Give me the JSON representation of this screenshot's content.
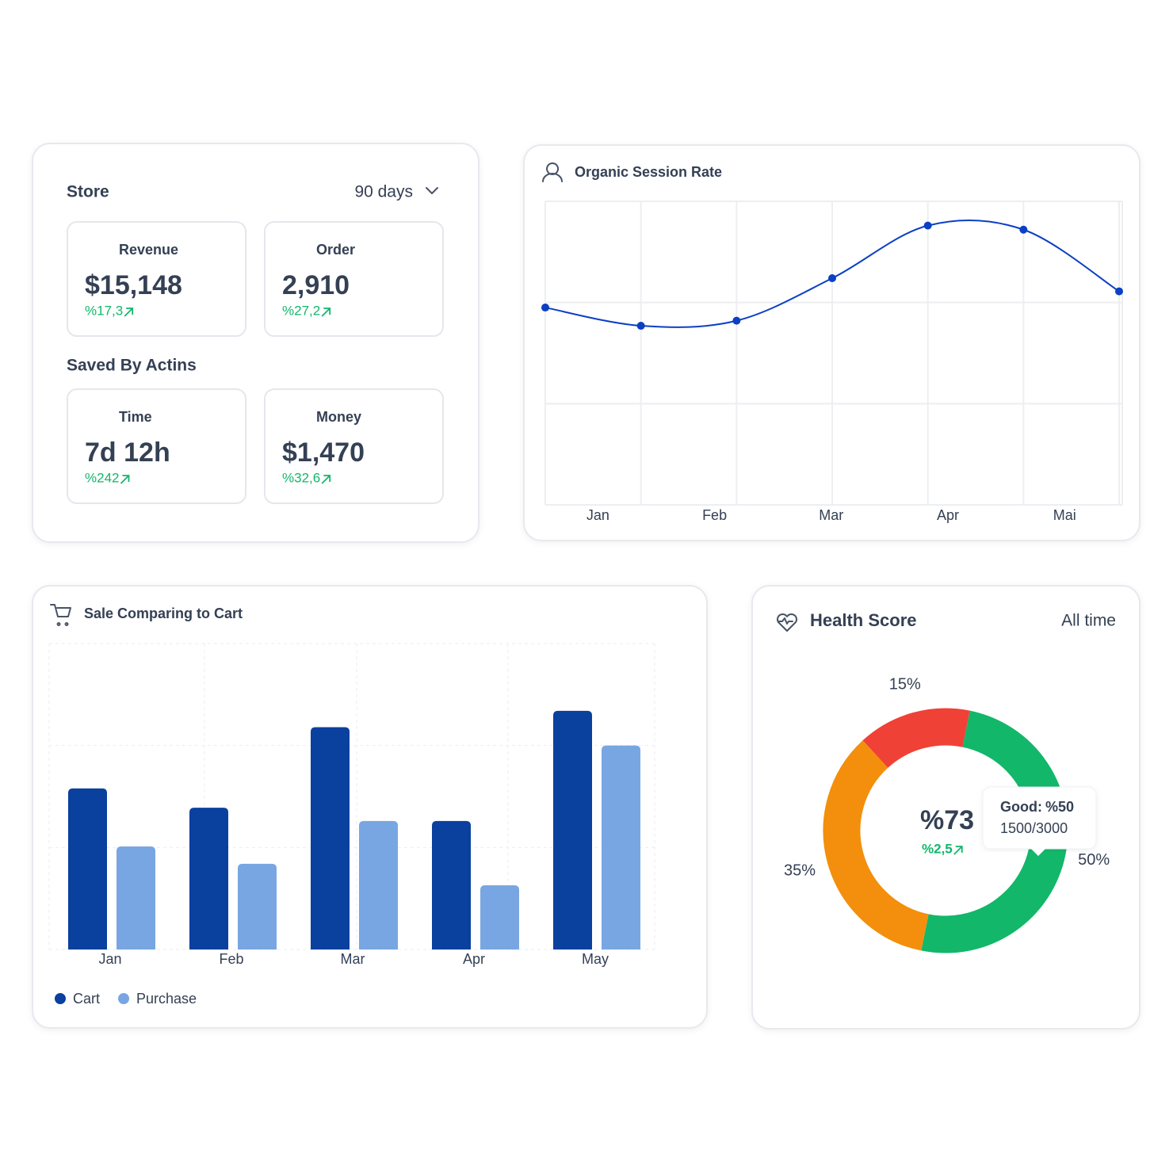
{
  "store": {
    "title": "Store",
    "period": "90 days",
    "metrics": [
      {
        "label": "Revenue",
        "value": "$15,148",
        "change": "%17,3"
      },
      {
        "label": "Order",
        "value": "2,910",
        "change": "%27,2"
      }
    ],
    "saved_title": "Saved By Actins",
    "saved": [
      {
        "label": "Time",
        "value": "7d 12h",
        "change": "%242"
      },
      {
        "label": "Money",
        "value": "$1,470",
        "change": "%32,6"
      }
    ]
  },
  "chart_data": [
    {
      "type": "line",
      "title": "Organic Session Rate",
      "x": [
        0,
        1,
        2,
        3,
        4,
        5,
        6
      ],
      "values": [
        1.95,
        1.77,
        1.82,
        2.24,
        2.76,
        2.72,
        2.11
      ],
      "color": "#0b3fc4",
      "xlim": [
        0,
        6
      ],
      "ylim": [
        0,
        3
      ],
      "yticks": [
        0,
        1,
        2,
        3
      ],
      "xticks": [
        {
          "value": 0.55,
          "label": "Jan"
        },
        {
          "value": 1.77,
          "label": "Feb"
        },
        {
          "value": 2.99,
          "label": "Mar"
        },
        {
          "value": 4.21,
          "label": "Apr"
        },
        {
          "value": 5.43,
          "label": "Mai"
        }
      ],
      "grid": true
    },
    {
      "type": "bar",
      "title": "Sale Comparing to Cart",
      "categories": [
        "Jan",
        "Feb",
        "Mar",
        "Apr",
        "May"
      ],
      "series": [
        {
          "name": "Cart",
          "color": "#0a409e",
          "values": [
            1.58,
            1.39,
            2.18,
            1.26,
            2.34
          ]
        },
        {
          "name": "Purchase",
          "color": "#78a6e2",
          "values": [
            1.01,
            0.84,
            1.26,
            0.63,
            2.0
          ]
        }
      ],
      "ylim": [
        0,
        3
      ],
      "yticks": [
        0,
        1,
        2,
        3
      ],
      "grid": true,
      "legend": "bottom-left"
    },
    {
      "type": "pie",
      "donut": true,
      "title": "Health Score",
      "period": "All time",
      "values": [
        50,
        35,
        15
      ],
      "value_labels": [
        "50%",
        "35%",
        "15%"
      ],
      "colors": [
        "#12b76a",
        "#f38f0c",
        "#ef4136"
      ],
      "center_value": "%73",
      "center_change": "%2,5",
      "tooltip": {
        "label": "Good:",
        "value": "%50",
        "detail": "1500/3000"
      }
    }
  ]
}
